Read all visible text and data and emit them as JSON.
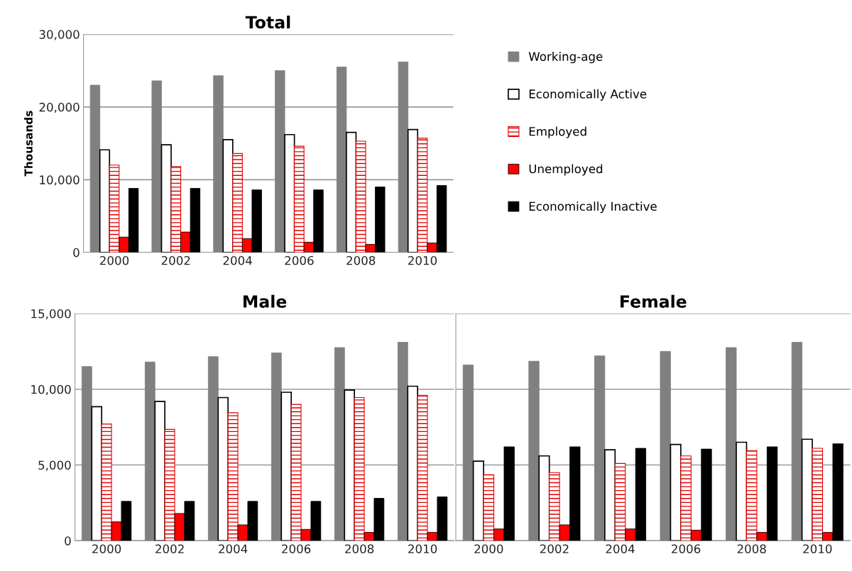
{
  "chart_data": [
    {
      "type": "bar",
      "title": "Total",
      "ylabel": "Thousands",
      "categories": [
        "2000",
        "2002",
        "2004",
        "2006",
        "2008",
        "2010"
      ],
      "series": [
        {
          "name": "Working-age",
          "color": "#808080",
          "values": [
            23000,
            23600,
            24300,
            25000,
            25500,
            26200
          ]
        },
        {
          "name": "Economically Active",
          "color": "#ffffff",
          "values": [
            14100,
            14800,
            15500,
            16200,
            16500,
            16900
          ]
        },
        {
          "name": "Employed",
          "color": "#e00000",
          "values": [
            12000,
            11800,
            13600,
            14600,
            15300,
            15700
          ]
        },
        {
          "name": "Unemployed",
          "color": "#ff0000",
          "values": [
            2100,
            2800,
            1900,
            1400,
            1100,
            1300
          ]
        },
        {
          "name": "Economically Inactive",
          "color": "#000000",
          "values": [
            8800,
            8800,
            8600,
            8600,
            9000,
            9200
          ]
        }
      ],
      "ylim": [
        0,
        30000
      ],
      "yticks": [
        0,
        {
          "value": 10000,
          "label": "10,000"
        },
        {
          "value": 20000,
          "label": "20,000"
        },
        {
          "value": 30000,
          "label": "30,000"
        }
      ],
      "grid": "y",
      "legend": "right"
    },
    {
      "type": "bar",
      "title": "Male",
      "categories": [
        "2000",
        "2002",
        "2004",
        "2006",
        "2008",
        "2010"
      ],
      "series": [
        {
          "color": "#808080",
          "values": [
            11500,
            11800,
            12150,
            12400,
            12750,
            13100
          ]
        },
        {
          "color": "#ffffff",
          "values": [
            8850,
            9200,
            9450,
            9800,
            9950,
            10200
          ]
        },
        {
          "color": "#e00000",
          "values": [
            7700,
            7350,
            8450,
            9000,
            9450,
            9600
          ]
        },
        {
          "color": "#ff0000",
          "values": [
            1250,
            1800,
            1050,
            750,
            550,
            550
          ]
        },
        {
          "color": "#000000",
          "values": [
            2600,
            2600,
            2600,
            2600,
            2800,
            2900
          ]
        }
      ],
      "ylim": [
        0,
        15000
      ],
      "yticks": [
        0,
        {
          "value": 5000,
          "label": "5,000"
        },
        {
          "value": 10000,
          "label": "10,000"
        },
        {
          "value": 15000,
          "label": "15,000"
        }
      ],
      "grid": "y"
    },
    {
      "type": "bar",
      "title": "Female",
      "categories": [
        "2000",
        "2002",
        "2004",
        "2006",
        "2008",
        "2010"
      ],
      "series": [
        {
          "color": "#808080",
          "values": [
            11600,
            11850,
            12200,
            12500,
            12750,
            13100
          ]
        },
        {
          "color": "#ffffff",
          "values": [
            5250,
            5600,
            6000,
            6350,
            6500,
            6700
          ]
        },
        {
          "color": "#e00000",
          "values": [
            4350,
            4500,
            5100,
            5600,
            5950,
            6100
          ]
        },
        {
          "color": "#ff0000",
          "values": [
            780,
            1050,
            780,
            700,
            550,
            550
          ]
        },
        {
          "color": "#000000",
          "values": [
            6200,
            6200,
            6100,
            6050,
            6200,
            6400
          ]
        }
      ],
      "ylim": [
        0,
        15000
      ],
      "yticks": [
        {
          "value": 0,
          "label": null
        },
        {
          "value": 5000,
          "label": null
        },
        {
          "value": 10000,
          "label": null
        },
        {
          "value": 15000,
          "label": null
        }
      ],
      "grid": "y",
      "tick_labels": "x"
    }
  ]
}
